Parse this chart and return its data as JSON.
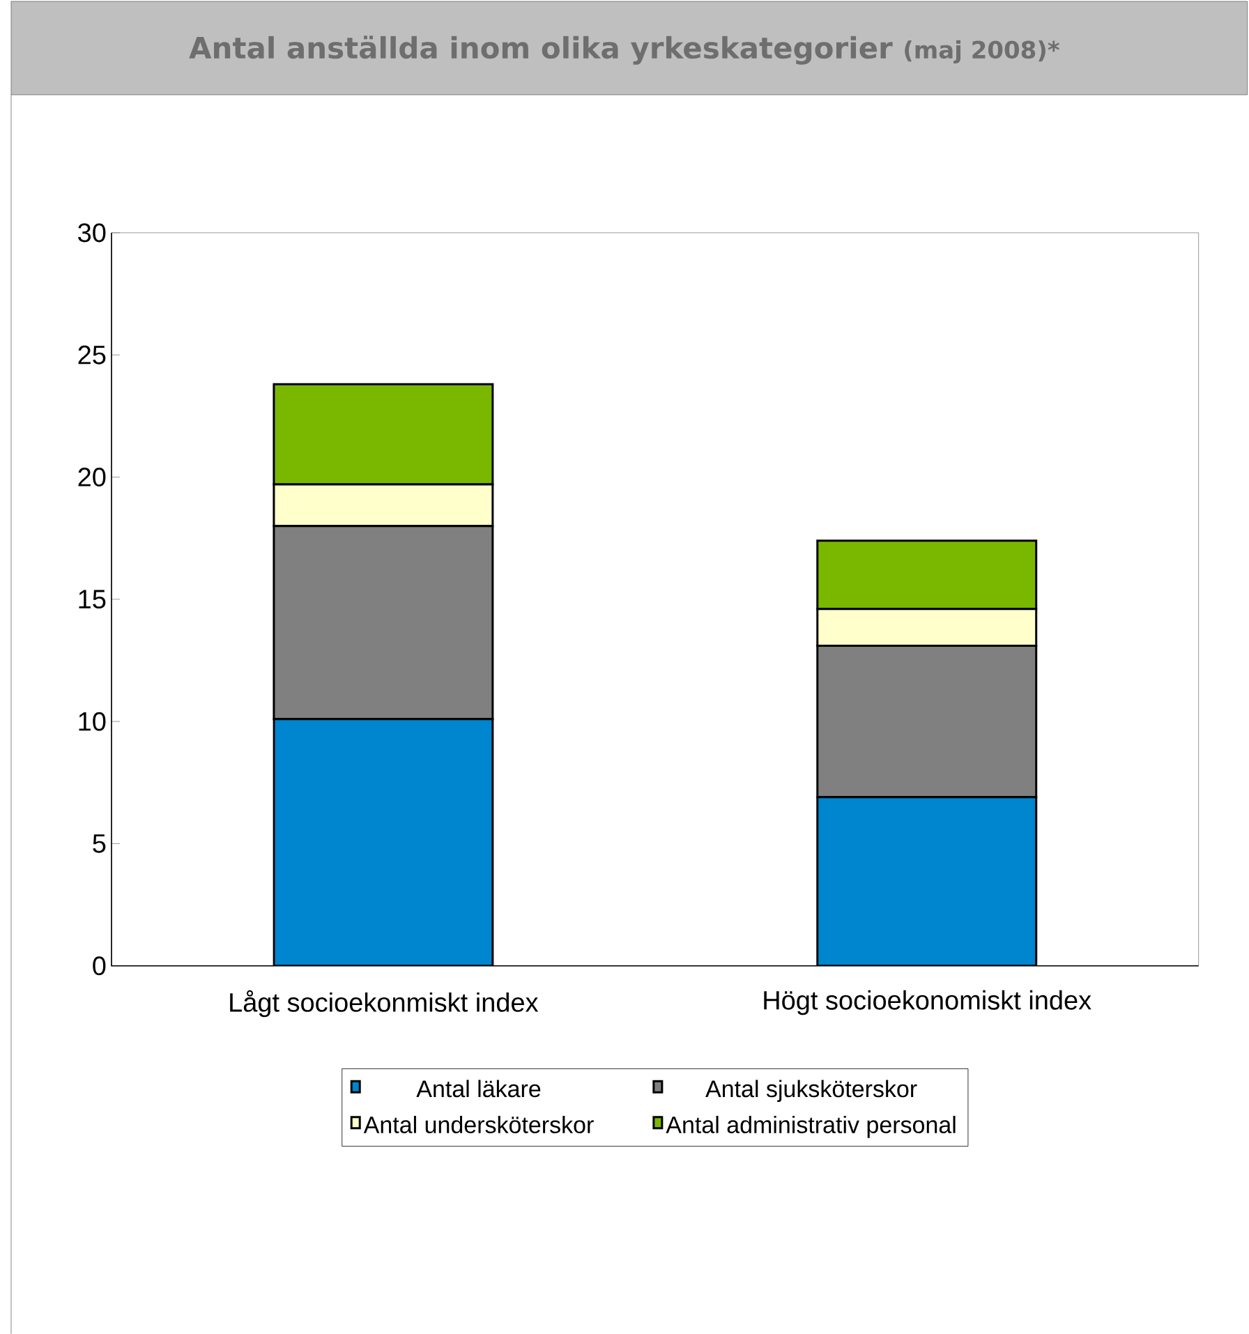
{
  "chart_data": {
    "type": "bar",
    "stacked": true,
    "title": "Antal anställda inom olika yrkeskategorier",
    "subtitle": "(maj 2008)*",
    "categories": [
      "Lågt socioekonmiskt index",
      "Högt socioekonomiskt index"
    ],
    "series": [
      {
        "name": "Antal läkare",
        "color": "#0085cf",
        "values": [
          10.1,
          6.9
        ]
      },
      {
        "name": "Antal sjuksköterskor",
        "color": "#808080",
        "values": [
          7.9,
          6.2
        ]
      },
      {
        "name": "Antal undersköterskor",
        "color": "#ffffcc",
        "values": [
          1.7,
          1.5
        ]
      },
      {
        "name": "Antal administrativ personal",
        "color": "#7ab800",
        "values": [
          4.1,
          2.8
        ]
      }
    ],
    "ylim": [
      0,
      30
    ],
    "yticks": [
      0,
      5,
      10,
      15,
      20,
      25,
      30
    ],
    "legend": "bottom"
  }
}
